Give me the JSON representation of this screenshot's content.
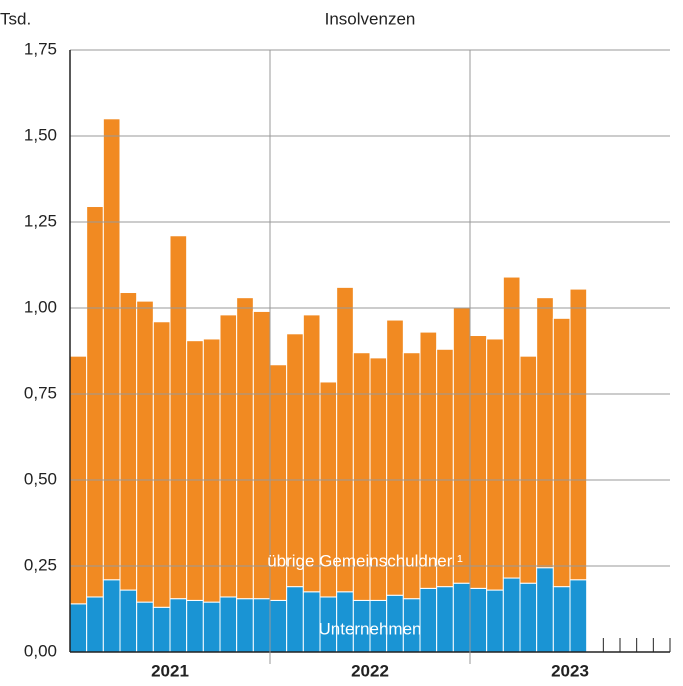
{
  "chart_data": {
    "type": "stacked-bar",
    "title": "Insolvenzen",
    "y_axis_label": "Tsd.",
    "categories": [
      null,
      null,
      null,
      null,
      null,
      null,
      null,
      null,
      null,
      null,
      null,
      null,
      null,
      null,
      null,
      null,
      null,
      null,
      null,
      null,
      null,
      null,
      null,
      null,
      null,
      null,
      null,
      null,
      null,
      null,
      null
    ],
    "year_labels": [
      "2021",
      "2022",
      "2023"
    ],
    "series": [
      {
        "name": "Unternehmen",
        "color": "#1a94d4",
        "values": [
          0.14,
          0.16,
          0.21,
          0.18,
          0.145,
          0.13,
          0.155,
          0.15,
          0.145,
          0.16,
          0.155,
          0.155,
          0.15,
          0.19,
          0.175,
          0.16,
          0.175,
          0.15,
          0.15,
          0.165,
          0.155,
          0.185,
          0.19,
          0.2,
          0.185,
          0.18,
          0.215,
          0.2,
          0.245,
          0.19,
          0.21
        ]
      },
      {
        "name": "übrige Gemeinschuldner ¹",
        "color": "#f18a22",
        "values": [
          0.72,
          1.135,
          1.34,
          0.865,
          0.875,
          0.83,
          1.055,
          0.755,
          0.765,
          0.82,
          0.875,
          0.835,
          0.685,
          0.735,
          0.805,
          0.625,
          0.885,
          0.72,
          0.705,
          0.8,
          0.715,
          0.745,
          0.69,
          0.8,
          0.735,
          0.73,
          0.875,
          0.66,
          0.785,
          0.78,
          0.845
        ]
      }
    ],
    "ylim": [
      0,
      1.75
    ],
    "yticks": [
      {
        "value": 0,
        "label": "0,00"
      },
      {
        "value": 0.25,
        "label": "0,25"
      },
      {
        "value": 0.5,
        "label": "0,50"
      },
      {
        "value": 0.75,
        "label": "0,75"
      },
      {
        "value": 1,
        "label": "1,00"
      },
      {
        "value": 1.25,
        "label": "1,25"
      },
      {
        "value": 1.5,
        "label": "1,50"
      },
      {
        "value": 1.75,
        "label": "1,75"
      }
    ],
    "grid": true
  }
}
